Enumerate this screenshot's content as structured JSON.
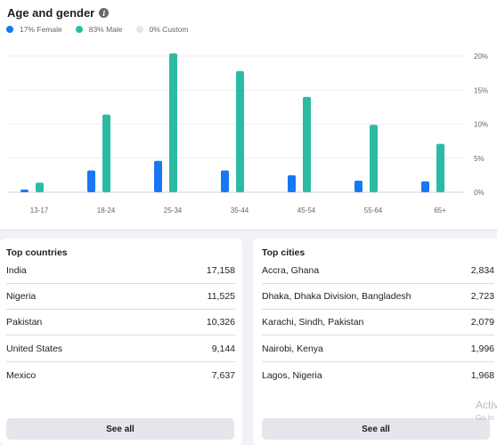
{
  "age_gender": {
    "title": "Age and gender",
    "info_icon": "info-icon",
    "legend": [
      {
        "label": "17% Female",
        "color": "#1877f2"
      },
      {
        "label": "83% Male",
        "color": "#2bbba4"
      },
      {
        "label": "0% Custom",
        "color": "#e4e6eb"
      }
    ]
  },
  "chart_data": {
    "type": "bar",
    "categories": [
      "13-17",
      "18-24",
      "25-34",
      "35-44",
      "45-54",
      "55-64",
      "65+"
    ],
    "series": [
      {
        "name": "Female",
        "color": "#1877f2",
        "values": [
          0.4,
          3.2,
          4.6,
          3.2,
          2.5,
          1.7,
          1.6
        ]
      },
      {
        "name": "Male",
        "color": "#2bbba4",
        "values": [
          1.4,
          11.4,
          20.4,
          17.8,
          14.0,
          9.9,
          7.1
        ]
      }
    ],
    "yticks": [
      "20%",
      "15%",
      "10%",
      "5%",
      "0%"
    ],
    "ytick_values": [
      20,
      15,
      10,
      5,
      0
    ],
    "ylim": [
      0,
      20
    ],
    "y_axis_position": "right",
    "grid": true,
    "title": "",
    "xlabel": "",
    "ylabel": ""
  },
  "top_countries": {
    "title": "Top countries",
    "rows": [
      {
        "name": "India",
        "value": "17,158"
      },
      {
        "name": "Nigeria",
        "value": "11,525"
      },
      {
        "name": "Pakistan",
        "value": "10,326"
      },
      {
        "name": "United States",
        "value": "9,144"
      },
      {
        "name": "Mexico",
        "value": "7,637"
      }
    ],
    "see_all": "See all"
  },
  "top_cities": {
    "title": "Top cities",
    "rows": [
      {
        "name": "Accra, Ghana",
        "value": "2,834"
      },
      {
        "name": "Dhaka, Dhaka Division, Bangladesh",
        "value": "2,723"
      },
      {
        "name": "Karachi, Sindh, Pakistan",
        "value": "2,079"
      },
      {
        "name": "Nairobi, Kenya",
        "value": "1,996"
      },
      {
        "name": "Lagos, Nigeria",
        "value": "1,968"
      }
    ],
    "see_all": "See all"
  },
  "watermark": {
    "line1": "Activ",
    "line2": "Go to"
  }
}
